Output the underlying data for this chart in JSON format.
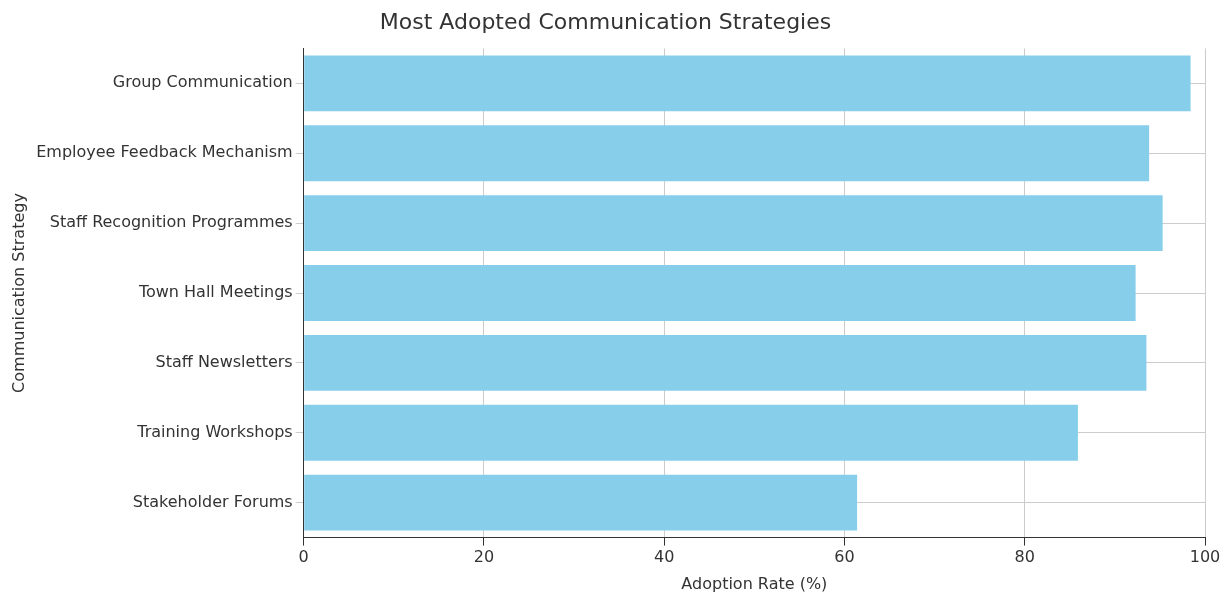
{
  "chart_data": {
    "type": "bar",
    "orientation": "horizontal",
    "title": "Most Adopted Communication Strategies",
    "xlabel": "Adoption Rate (%)",
    "ylabel": "Communication Strategy",
    "categories": [
      "Group Communication",
      "Employee Feedback Mechanism",
      "Staff Recognition Programmes",
      "Town Hall Meetings",
      "Staff Newsletters",
      "Training Workshops",
      "Stakeholder Forums"
    ],
    "values": [
      98.4,
      93.8,
      95.3,
      92.3,
      93.5,
      85.9,
      61.4
    ],
    "color": "#87ceeb",
    "xlim": [
      0,
      100
    ],
    "xticks": [
      0,
      20,
      40,
      60,
      80,
      100
    ],
    "grid": true,
    "legend": false
  }
}
